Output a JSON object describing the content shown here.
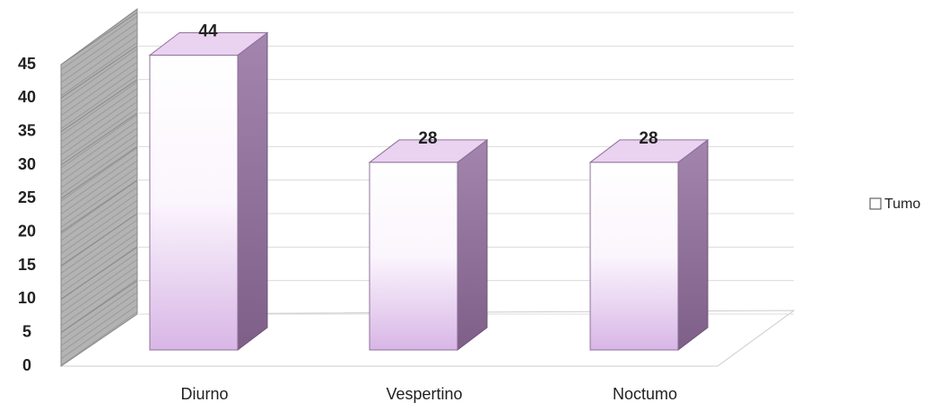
{
  "chart_data": {
    "type": "bar",
    "categories": [
      "Diurno",
      "Vespertino",
      "Noctumo"
    ],
    "series": [
      {
        "name": "Tumo",
        "color": "#d8b6e6",
        "values": [
          44,
          28,
          28
        ]
      }
    ],
    "ylim": [
      0,
      45
    ],
    "yticks": [
      0,
      5,
      10,
      15,
      20,
      25,
      30,
      35,
      40,
      45
    ],
    "grid": true,
    "legend": "right"
  }
}
